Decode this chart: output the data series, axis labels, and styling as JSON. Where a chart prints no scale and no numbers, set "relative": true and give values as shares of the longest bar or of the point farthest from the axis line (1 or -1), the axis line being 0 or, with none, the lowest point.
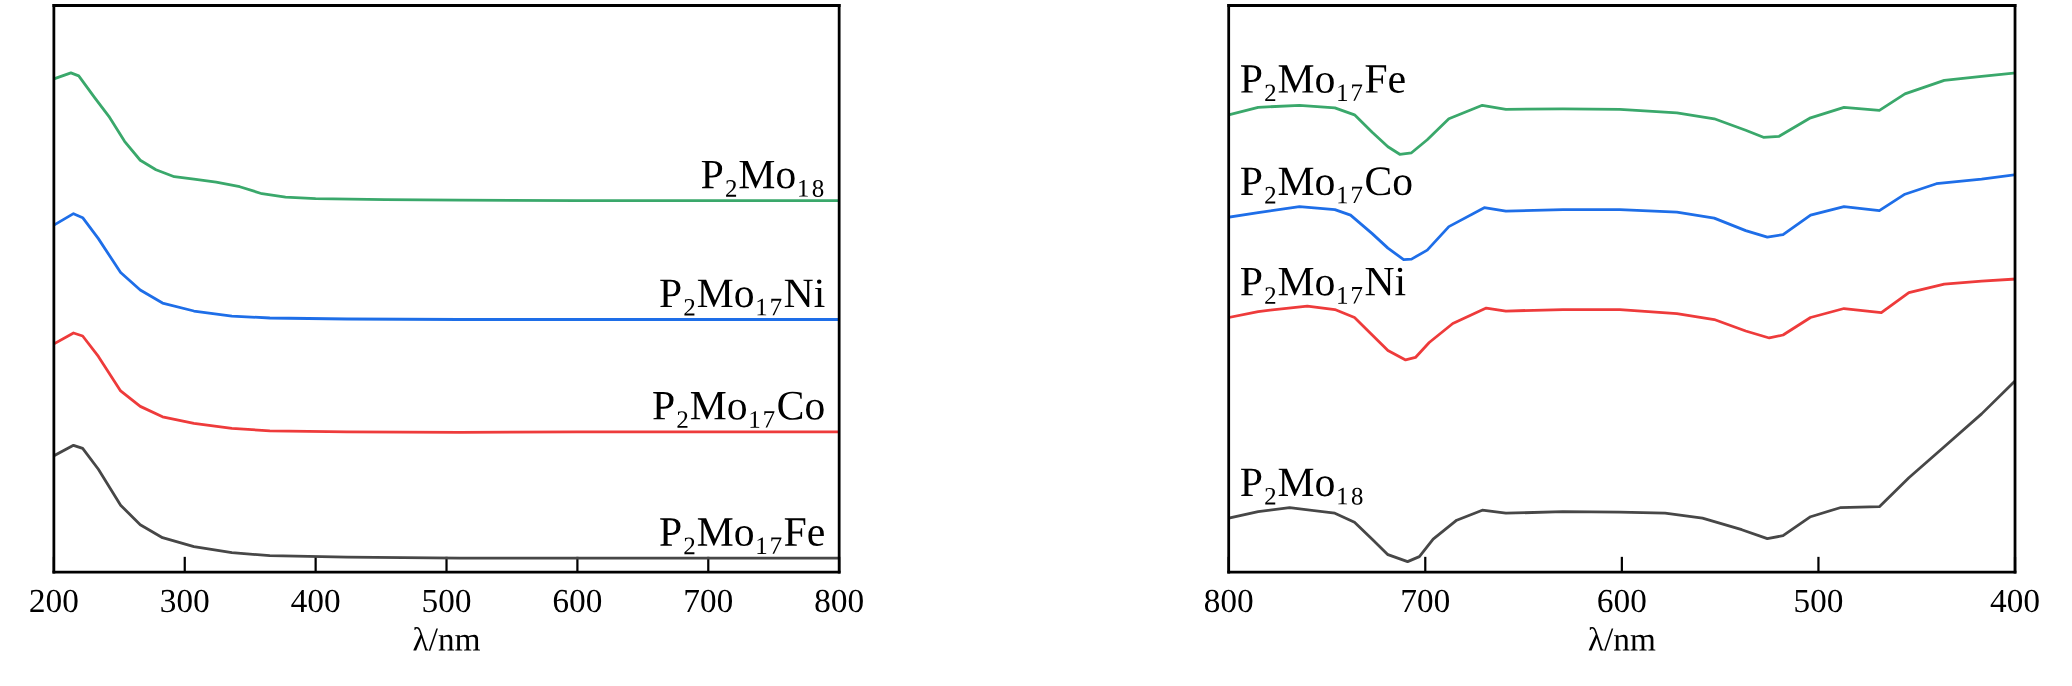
{
  "chart_data": [
    {
      "type": "line",
      "relative": true,
      "tick_labels": "x",
      "xlabel": "λ/nm",
      "xlim": [
        200,
        800
      ],
      "xticks": [
        200,
        300,
        400,
        500,
        600,
        700,
        800
      ],
      "series": [
        {
          "name": "P₂Mo₁₈",
          "color": "#3aa86b",
          "x": [
            200,
            213,
            219,
            231,
            242,
            254,
            266,
            278,
            292,
            307,
            324,
            342,
            359,
            377,
            400,
            453,
            510,
            600,
            700,
            800
          ],
          "values": [
            0.988,
            1.0,
            0.994,
            0.951,
            0.913,
            0.863,
            0.825,
            0.806,
            0.792,
            0.787,
            0.781,
            0.772,
            0.758,
            0.751,
            0.748,
            0.746,
            0.745,
            0.744,
            0.744,
            0.744
          ]
        },
        {
          "name": "P₂Mo₁₇Ni",
          "color": "#1e6ee8",
          "x": [
            200,
            215,
            222,
            234,
            251,
            266,
            283,
            307,
            336,
            365,
            424,
            510,
            600,
            700,
            800
          ],
          "values": [
            0.695,
            0.718,
            0.71,
            0.668,
            0.6,
            0.565,
            0.539,
            0.523,
            0.513,
            0.509,
            0.507,
            0.506,
            0.506,
            0.506,
            0.506
          ]
        },
        {
          "name": "P₂Mo₁₇Co",
          "color": "#ee3b3b",
          "x": [
            200,
            215,
            222,
            234,
            251,
            266,
            283,
            307,
            336,
            365,
            424,
            510,
            600,
            700,
            800
          ],
          "values": [
            0.457,
            0.479,
            0.473,
            0.432,
            0.363,
            0.332,
            0.311,
            0.298,
            0.288,
            0.283,
            0.281,
            0.28,
            0.281,
            0.281,
            0.281
          ]
        },
        {
          "name": "P₂Mo₁₇Fe",
          "color": "#474747",
          "x": [
            200,
            215,
            222,
            234,
            251,
            266,
            283,
            307,
            336,
            365,
            424,
            510,
            600,
            700,
            800
          ],
          "values": [
            0.233,
            0.254,
            0.248,
            0.206,
            0.134,
            0.095,
            0.069,
            0.051,
            0.039,
            0.033,
            0.03,
            0.028,
            0.028,
            0.028,
            0.028
          ]
        }
      ]
    },
    {
      "type": "line",
      "relative": true,
      "tick_labels": "x",
      "xlabel": "λ/nm",
      "xlim": [
        800,
        400
      ],
      "xticks": [
        800,
        700,
        600,
        500,
        400
      ],
      "series": [
        {
          "name": "P₂Mo₁₇Fe",
          "color": "#3aa86b",
          "x": [
            800,
            785,
            764,
            746,
            736,
            727,
            719,
            713,
            707,
            699,
            688,
            671,
            659,
            630,
            601,
            572,
            553,
            537,
            528,
            520,
            504,
            487,
            469,
            456,
            436,
            417,
            400
          ],
          "values": [
            0.916,
            0.931,
            0.935,
            0.93,
            0.916,
            0.881,
            0.852,
            0.837,
            0.84,
            0.866,
            0.908,
            0.935,
            0.927,
            0.928,
            0.927,
            0.92,
            0.908,
            0.885,
            0.871,
            0.873,
            0.91,
            0.931,
            0.925,
            0.958,
            0.985,
            0.993,
            1.0
          ]
        },
        {
          "name": "P₂Mo₁₇Co",
          "color": "#1e6ee8",
          "x": [
            800,
            785,
            764,
            746,
            738,
            727,
            719,
            711,
            707,
            699,
            688,
            670,
            659,
            630,
            601,
            572,
            553,
            537,
            526,
            518,
            504,
            487,
            469,
            456,
            440,
            417,
            400
          ],
          "values": [
            0.711,
            0.72,
            0.732,
            0.726,
            0.715,
            0.678,
            0.649,
            0.626,
            0.627,
            0.645,
            0.692,
            0.73,
            0.723,
            0.726,
            0.726,
            0.721,
            0.709,
            0.684,
            0.671,
            0.676,
            0.715,
            0.732,
            0.724,
            0.757,
            0.778,
            0.787,
            0.796
          ]
        },
        {
          "name": "P₂Mo₁₇Ni",
          "color": "#ee3b3b",
          "x": [
            800,
            785,
            760,
            746,
            736,
            727,
            719,
            710,
            705,
            698,
            686,
            669,
            659,
            630,
            601,
            572,
            553,
            537,
            525,
            518,
            504,
            487,
            468,
            454,
            436,
            417,
            400
          ],
          "values": [
            0.51,
            0.522,
            0.533,
            0.526,
            0.51,
            0.475,
            0.444,
            0.425,
            0.43,
            0.46,
            0.498,
            0.529,
            0.523,
            0.526,
            0.526,
            0.518,
            0.506,
            0.483,
            0.469,
            0.475,
            0.51,
            0.528,
            0.52,
            0.56,
            0.577,
            0.583,
            0.587
          ]
        },
        {
          "name": "P₂Mo₁₈",
          "color": "#474747",
          "x": [
            800,
            785,
            769,
            746,
            736,
            727,
            719,
            709,
            703,
            696,
            684,
            671,
            659,
            630,
            601,
            578,
            559,
            539,
            526,
            518,
            504,
            489,
            469,
            454,
            436,
            417,
            400
          ],
          "values": [
            0.108,
            0.121,
            0.129,
            0.118,
            0.1,
            0.066,
            0.035,
            0.021,
            0.031,
            0.066,
            0.104,
            0.124,
            0.118,
            0.121,
            0.12,
            0.118,
            0.108,
            0.085,
            0.067,
            0.073,
            0.111,
            0.129,
            0.131,
            0.189,
            0.251,
            0.317,
            0.383
          ]
        }
      ]
    }
  ]
}
